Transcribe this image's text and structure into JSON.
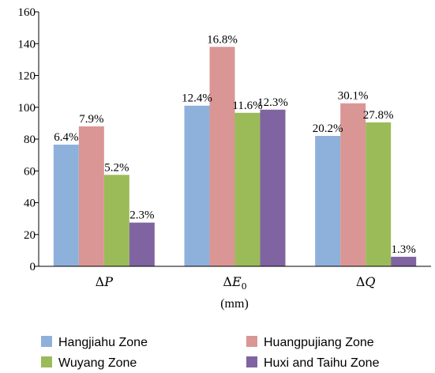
{
  "chart_data": {
    "type": "bar",
    "categories": [
      "ΔP",
      "ΔE0",
      "ΔQ"
    ],
    "category_parts": [
      {
        "main": "Δ",
        "italic": "P",
        "sub": ""
      },
      {
        "main": "Δ",
        "italic": "E",
        "sub": "0"
      },
      {
        "main": "Δ",
        "italic": "Q",
        "sub": ""
      }
    ],
    "series": [
      {
        "name": "Hangjiahu Zone",
        "color": "#8eb1dc",
        "values": [
          76.5,
          101,
          82
        ],
        "labels": [
          "6.4%",
          "12.4%",
          "20.2%"
        ]
      },
      {
        "name": "Huangpujiang Zone",
        "color": "#d99695",
        "values": [
          88,
          138,
          102.5
        ],
        "labels": [
          "7.9%",
          "16.8%",
          "30.1%"
        ]
      },
      {
        "name": "Wuyang Zone",
        "color": "#9bbb59",
        "values": [
          57.5,
          96.5,
          90.5
        ],
        "labels": [
          "5.2%",
          "11.6%",
          "27.8%"
        ]
      },
      {
        "name": "Huxi and Taihu Zone",
        "color": "#8064a2",
        "values": [
          27.5,
          98.5,
          6
        ],
        "labels": [
          "2.3%",
          "12.3%",
          "1.3%"
        ]
      }
    ],
    "xlabel": "(mm)",
    "ylabel": "",
    "ylim": [
      0,
      160
    ],
    "yticks": [
      0,
      20,
      40,
      60,
      80,
      100,
      120,
      140,
      160
    ],
    "legend_position": "bottom",
    "grid": false
  }
}
